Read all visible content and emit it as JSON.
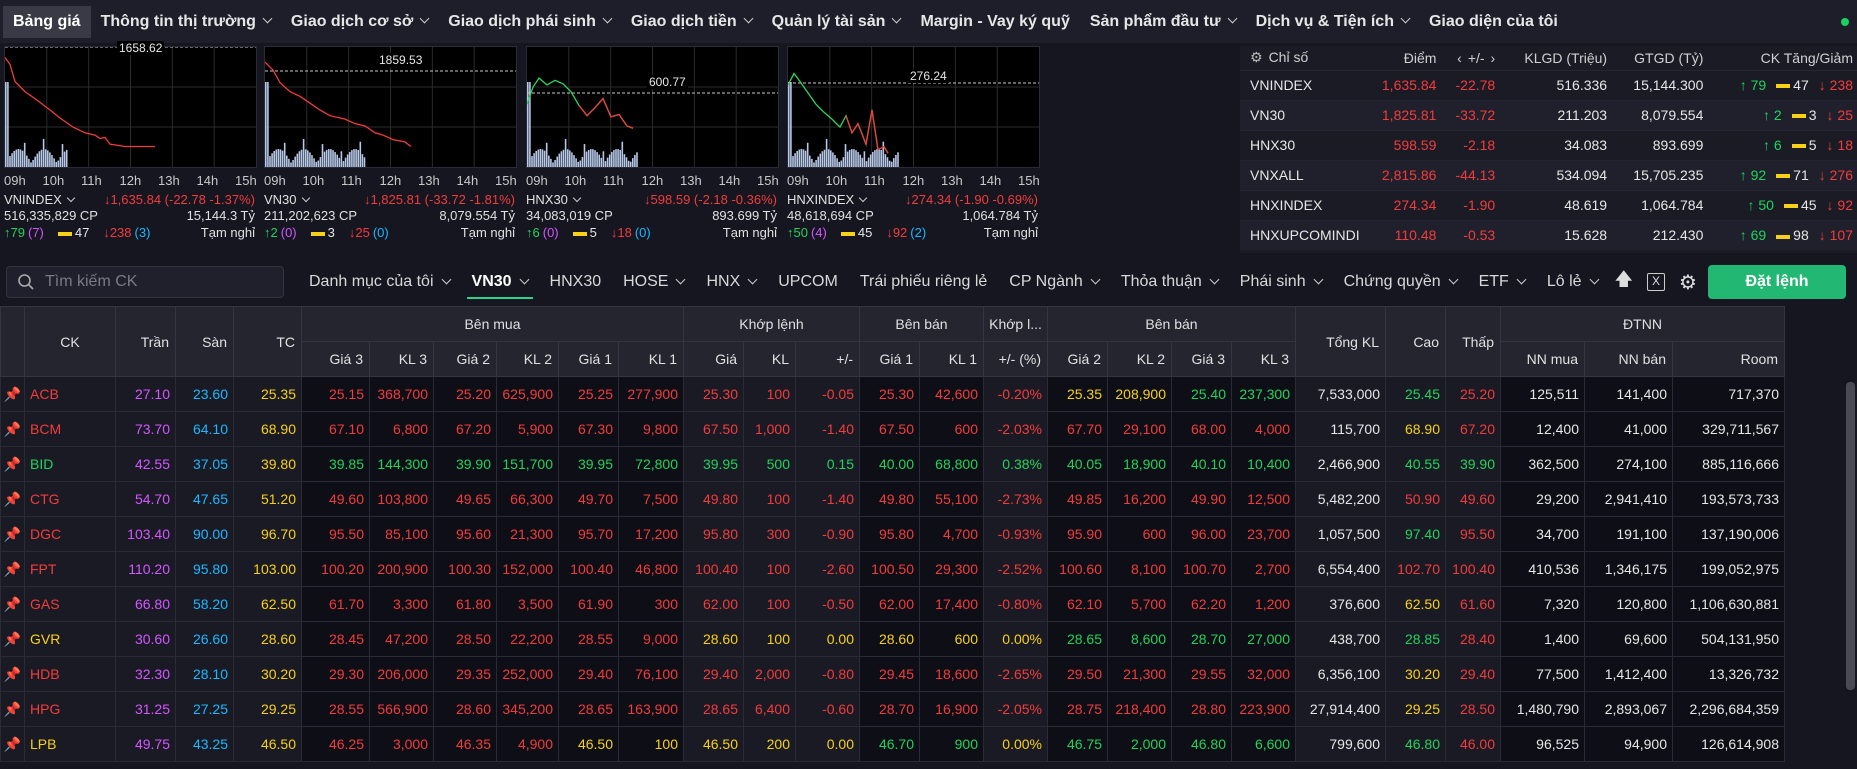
{
  "nav": {
    "items": [
      {
        "label": "Bảng giá",
        "active": true,
        "dropdown": false
      },
      {
        "label": "Thông tin thị trường",
        "dropdown": true
      },
      {
        "label": "Giao dịch cơ sở",
        "dropdown": true
      },
      {
        "label": "Giao dịch phái sinh",
        "dropdown": true
      },
      {
        "label": "Giao dịch tiền",
        "dropdown": true
      },
      {
        "label": "Quản lý tài sản",
        "dropdown": true
      },
      {
        "label": "Margin - Vay ký quỹ",
        "dropdown": false
      },
      {
        "label": "Sản phẩm đầu tư",
        "dropdown": true
      },
      {
        "label": "Dịch vụ & Tiện ích",
        "dropdown": true
      },
      {
        "label": "Giao diện của tôi",
        "dropdown": false
      }
    ]
  },
  "minicharts": {
    "times": [
      "09h",
      "10h",
      "11h",
      "12h",
      "13h",
      "14h",
      "15h"
    ],
    "items": [
      {
        "name": "VNINDEX",
        "ref_label": "1658.62",
        "change": "↓1,635.84 (-22.78 -1.37%)",
        "volume": "516,335,829 CP",
        "value": "15,144.3 Tỷ",
        "up": "↑79",
        "ceil": "(7)",
        "flat": "47",
        "down": "↓238",
        "floor": "(3)",
        "status": "Tạm nghỉ",
        "price_series": [
          [
            0,
            0.96
          ],
          [
            5,
            0.9
          ],
          [
            10,
            0.75
          ],
          [
            20,
            0.66
          ],
          [
            30,
            0.6
          ],
          [
            45,
            0.5
          ],
          [
            55,
            0.43
          ],
          [
            68,
            0.35
          ],
          [
            80,
            0.3
          ],
          [
            90,
            0.28
          ],
          [
            95,
            0.25
          ],
          [
            100,
            0.26
          ],
          [
            105,
            0.2
          ],
          [
            120,
            0.18
          ],
          [
            150,
            0.18
          ]
        ]
      },
      {
        "name": "VN30",
        "ref_label": "1859.53",
        "change": "↓1,825.81 (-33.72 -1.81%)",
        "volume": "211,202,623 CP",
        "value": "8,079.554 Tỷ",
        "up": "↑2",
        "ceil": "(0)",
        "flat": "3",
        "down": "↓25",
        "floor": "(0)",
        "status": "Tạm nghỉ",
        "price_series": [
          [
            0,
            0.92
          ],
          [
            8,
            0.85
          ],
          [
            15,
            0.74
          ],
          [
            25,
            0.66
          ],
          [
            35,
            0.62
          ],
          [
            45,
            0.56
          ],
          [
            55,
            0.5
          ],
          [
            65,
            0.45
          ],
          [
            80,
            0.42
          ],
          [
            90,
            0.38
          ],
          [
            100,
            0.36
          ],
          [
            110,
            0.3
          ],
          [
            118,
            0.28
          ],
          [
            128,
            0.24
          ],
          [
            140,
            0.22
          ],
          [
            146,
            0.18
          ]
        ]
      },
      {
        "name": "HNX30",
        "ref_label": "600.77",
        "change": "↓598.59 (-2.18 -0.36%)",
        "volume": "34,083,019 CP",
        "value": "893.699 Tỷ",
        "up": "↑6",
        "ceil": "(0)",
        "flat": "5",
        "down": "↓18",
        "floor": "(0)",
        "status": "Tạm nghỉ",
        "price_series": [
          [
            0,
            0.55
          ],
          [
            6,
            0.7
          ],
          [
            12,
            0.78
          ],
          [
            20,
            0.72
          ],
          [
            28,
            0.76
          ],
          [
            36,
            0.73
          ],
          [
            44,
            0.66
          ],
          [
            52,
            0.54
          ],
          [
            60,
            0.45
          ],
          [
            68,
            0.52
          ],
          [
            76,
            0.6
          ],
          [
            84,
            0.44
          ],
          [
            92,
            0.46
          ],
          [
            100,
            0.36
          ],
          [
            106,
            0.34
          ]
        ]
      },
      {
        "name": "HNXINDEX",
        "ref_label": "276.24",
        "change": "↓274.34 (-1.90 -0.69%)",
        "volume": "48,618,694 CP",
        "value": "1,064.784 Tỷ",
        "up": "↑50",
        "ceil": "(4)",
        "flat": "45",
        "down": "↓92",
        "floor": "(2)",
        "status": "Tạm nghỉ",
        "price_series": [
          [
            0,
            0.72
          ],
          [
            6,
            0.82
          ],
          [
            12,
            0.75
          ],
          [
            20,
            0.65
          ],
          [
            28,
            0.55
          ],
          [
            36,
            0.48
          ],
          [
            44,
            0.42
          ],
          [
            52,
            0.35
          ],
          [
            58,
            0.45
          ],
          [
            64,
            0.3
          ],
          [
            70,
            0.38
          ],
          [
            78,
            0.2
          ],
          [
            84,
            0.5
          ],
          [
            90,
            0.15
          ],
          [
            96,
            0.18
          ],
          [
            100,
            0.12
          ]
        ]
      }
    ]
  },
  "indices": {
    "headers": [
      "Chỉ số",
      "Điểm",
      "+/-",
      "KLGD (Triệu)",
      "GTGD (Tỷ)",
      "CK Tăng/Giảm"
    ],
    "rows": [
      {
        "name": "VNINDEX",
        "point": "1,635.84",
        "change": "-22.78",
        "vol": "516.336",
        "val": "15,144.300",
        "up": "↑ 79",
        "flat": "47",
        "down": "↓ 238"
      },
      {
        "name": "VN30",
        "point": "1,825.81",
        "change": "-33.72",
        "vol": "211.203",
        "val": "8,079.554",
        "up": "↑ 2",
        "flat": "3",
        "down": "↓ 25"
      },
      {
        "name": "HNX30",
        "point": "598.59",
        "change": "-2.18",
        "vol": "34.083",
        "val": "893.699",
        "up": "↑ 6",
        "flat": "5",
        "down": "↓ 18"
      },
      {
        "name": "VNXALL",
        "point": "2,815.86",
        "change": "-44.13",
        "vol": "534.094",
        "val": "15,705.235",
        "up": "↑ 92",
        "flat": "71",
        "down": "↓ 276"
      },
      {
        "name": "HNXINDEX",
        "point": "274.34",
        "change": "-1.90",
        "vol": "48.619",
        "val": "1,064.784",
        "up": "↑ 50",
        "flat": "45",
        "down": "↓ 92"
      },
      {
        "name": "HNXUPCOMINDI",
        "point": "110.48",
        "change": "-0.53",
        "vol": "15.628",
        "val": "212.430",
        "up": "↑ 69",
        "flat": "98",
        "down": "↓ 107"
      }
    ]
  },
  "toolbar": {
    "search_placeholder": "Tìm kiếm CK",
    "tabs": [
      {
        "label": "Danh mục của tôi",
        "dropdown": true
      },
      {
        "label": "VN30",
        "dropdown": true,
        "active": true
      },
      {
        "label": "HNX30",
        "dropdown": false
      },
      {
        "label": "HOSE",
        "dropdown": true
      },
      {
        "label": "HNX",
        "dropdown": true
      },
      {
        "label": "UPCOM",
        "dropdown": false
      },
      {
        "label": "Trái phiếu riêng lẻ",
        "dropdown": false
      },
      {
        "label": "CP Ngành",
        "dropdown": true
      },
      {
        "label": "Thỏa thuận",
        "dropdown": true
      },
      {
        "label": "Phái sinh",
        "dropdown": true
      },
      {
        "label": "Chứng quyền",
        "dropdown": true
      },
      {
        "label": "ETF",
        "dropdown": true
      },
      {
        "label": "Lô lẻ",
        "dropdown": true
      }
    ],
    "order_button": "Đặt lệnh"
  },
  "board": {
    "group_headers": {
      "ck": "CK",
      "ceil": "Trần",
      "floor": "Sàn",
      "ref": "TC",
      "buy": "Bên mua",
      "match": "Khớp lệnh",
      "sell1": "Bên bán",
      "match2": "Khớp l...",
      "sell2": "Bên bán",
      "total": "Tổng KL",
      "high": "Cao",
      "low": "Thấp",
      "foreign": "ĐTNN"
    },
    "sub_headers": [
      "Giá 3",
      "KL 3",
      "Giá 2",
      "KL 2",
      "Giá 1",
      "KL 1",
      "Giá",
      "KL",
      "+/-",
      "Giá 1",
      "KL 1",
      "+/- (%)",
      "Giá 2",
      "KL 2",
      "Giá 3",
      "KL 3",
      "NN mua",
      "NN bán",
      "Room"
    ],
    "rows": [
      {
        "sym": "ACB",
        "c": "red",
        "ceil": "27.10",
        "floor": "23.60",
        "ref": "25.35",
        "b3": "25.15",
        "bv3": "368,700",
        "b3c": "red",
        "b2": "25.20",
        "bv2": "625,900",
        "b2c": "red",
        "b1": "25.25",
        "bv1": "277,900",
        "b1c": "red",
        "mp": "25.30",
        "mv": "100",
        "mch": "-0.05",
        "mc": "red",
        "s1": "25.30",
        "sv1": "42,600",
        "s1c": "red",
        "pct": "-0.20%",
        "pc": "red",
        "s2": "25.35",
        "sv2": "208,900",
        "s2c": "yel",
        "s3": "25.40",
        "sv3": "237,300",
        "s3c": "grn",
        "tot": "7,533,000",
        "hi": "25.45",
        "hic": "grn",
        "lo": "25.20",
        "loc": "red",
        "nb": "125,511",
        "ns": "141,400",
        "room": "717,370"
      },
      {
        "sym": "BCM",
        "c": "red",
        "ceil": "73.70",
        "floor": "64.10",
        "ref": "68.90",
        "b3": "67.10",
        "bv3": "6,800",
        "b3c": "red",
        "b2": "67.20",
        "bv2": "5,900",
        "b2c": "red",
        "b1": "67.30",
        "bv1": "9,800",
        "b1c": "red",
        "mp": "67.50",
        "mv": "1,000",
        "mch": "-1.40",
        "mc": "red",
        "s1": "67.50",
        "sv1": "600",
        "s1c": "red",
        "pct": "-2.03%",
        "pc": "red",
        "s2": "67.70",
        "sv2": "29,100",
        "s2c": "red",
        "s3": "68.00",
        "sv3": "4,000",
        "s3c": "red",
        "tot": "115,700",
        "hi": "68.90",
        "hic": "yel",
        "lo": "67.20",
        "loc": "red",
        "nb": "12,400",
        "ns": "41,000",
        "room": "329,711,567"
      },
      {
        "sym": "BID",
        "c": "grn",
        "ceil": "42.55",
        "floor": "37.05",
        "ref": "39.80",
        "b3": "39.85",
        "bv3": "144,300",
        "b3c": "grn",
        "b2": "39.90",
        "bv2": "151,700",
        "b2c": "grn",
        "b1": "39.95",
        "bv1": "72,800",
        "b1c": "grn",
        "mp": "39.95",
        "mv": "500",
        "mch": "0.15",
        "mc": "grn",
        "s1": "40.00",
        "sv1": "68,800",
        "s1c": "grn",
        "pct": "0.38%",
        "pc": "grn",
        "s2": "40.05",
        "sv2": "18,900",
        "s2c": "grn",
        "s3": "40.10",
        "sv3": "10,400",
        "s3c": "grn",
        "tot": "2,466,900",
        "hi": "40.55",
        "hic": "grn",
        "lo": "39.90",
        "loc": "grn",
        "nb": "362,500",
        "ns": "274,100",
        "room": "885,116,666"
      },
      {
        "sym": "CTG",
        "c": "red",
        "ceil": "54.70",
        "floor": "47.65",
        "ref": "51.20",
        "b3": "49.60",
        "bv3": "103,800",
        "b3c": "red",
        "b2": "49.65",
        "bv2": "66,300",
        "b2c": "red",
        "b1": "49.70",
        "bv1": "7,500",
        "b1c": "red",
        "mp": "49.80",
        "mv": "100",
        "mch": "-1.40",
        "mc": "red",
        "s1": "49.80",
        "sv1": "55,100",
        "s1c": "red",
        "pct": "-2.73%",
        "pc": "red",
        "s2": "49.85",
        "sv2": "16,200",
        "s2c": "red",
        "s3": "49.90",
        "sv3": "12,500",
        "s3c": "red",
        "tot": "5,482,200",
        "hi": "50.90",
        "hic": "red",
        "lo": "49.60",
        "loc": "red",
        "nb": "29,200",
        "ns": "2,941,410",
        "room": "193,573,733"
      },
      {
        "sym": "DGC",
        "c": "red",
        "ceil": "103.40",
        "floor": "90.00",
        "ref": "96.70",
        "b3": "95.50",
        "bv3": "85,100",
        "b3c": "red",
        "b2": "95.60",
        "bv2": "21,300",
        "b2c": "red",
        "b1": "95.70",
        "bv1": "17,200",
        "b1c": "red",
        "mp": "95.80",
        "mv": "300",
        "mch": "-0.90",
        "mc": "red",
        "s1": "95.80",
        "sv1": "4,700",
        "s1c": "red",
        "pct": "-0.93%",
        "pc": "red",
        "s2": "95.90",
        "sv2": "600",
        "s2c": "red",
        "s3": "96.00",
        "sv3": "23,700",
        "s3c": "red",
        "tot": "1,057,500",
        "hi": "97.40",
        "hic": "grn",
        "lo": "95.50",
        "loc": "red",
        "nb": "34,700",
        "ns": "191,100",
        "room": "137,190,006"
      },
      {
        "sym": "FPT",
        "c": "red",
        "ceil": "110.20",
        "floor": "95.80",
        "ref": "103.00",
        "b3": "100.20",
        "bv3": "200,900",
        "b3c": "red",
        "b2": "100.30",
        "bv2": "152,000",
        "b2c": "red",
        "b1": "100.40",
        "bv1": "46,800",
        "b1c": "red",
        "mp": "100.40",
        "mv": "100",
        "mch": "-2.60",
        "mc": "red",
        "s1": "100.50",
        "sv1": "29,300",
        "s1c": "red",
        "pct": "-2.52%",
        "pc": "red",
        "s2": "100.60",
        "sv2": "8,100",
        "s2c": "red",
        "s3": "100.70",
        "sv3": "2,700",
        "s3c": "red",
        "tot": "6,554,400",
        "hi": "102.70",
        "hic": "red",
        "lo": "100.40",
        "loc": "red",
        "nb": "410,536",
        "ns": "1,346,175",
        "room": "199,052,975"
      },
      {
        "sym": "GAS",
        "c": "red",
        "ceil": "66.80",
        "floor": "58.20",
        "ref": "62.50",
        "b3": "61.70",
        "bv3": "3,300",
        "b3c": "red",
        "b2": "61.80",
        "bv2": "3,500",
        "b2c": "red",
        "b1": "61.90",
        "bv1": "300",
        "b1c": "red",
        "mp": "62.00",
        "mv": "100",
        "mch": "-0.50",
        "mc": "red",
        "s1": "62.00",
        "sv1": "17,400",
        "s1c": "red",
        "pct": "-0.80%",
        "pc": "red",
        "s2": "62.10",
        "sv2": "5,700",
        "s2c": "red",
        "s3": "62.20",
        "sv3": "1,200",
        "s3c": "red",
        "tot": "376,600",
        "hi": "62.50",
        "hic": "yel",
        "lo": "61.60",
        "loc": "red",
        "nb": "7,320",
        "ns": "120,800",
        "room": "1,106,630,881"
      },
      {
        "sym": "GVR",
        "c": "yel",
        "ceil": "30.60",
        "floor": "26.60",
        "ref": "28.60",
        "b3": "28.45",
        "bv3": "47,200",
        "b3c": "red",
        "b2": "28.50",
        "bv2": "22,200",
        "b2c": "red",
        "b1": "28.55",
        "bv1": "9,000",
        "b1c": "red",
        "mp": "28.60",
        "mv": "100",
        "mch": "0.00",
        "mc": "yel",
        "s1": "28.60",
        "sv1": "600",
        "s1c": "yel",
        "pct": "0.00%",
        "pc": "yel",
        "s2": "28.65",
        "sv2": "8,600",
        "s2c": "grn",
        "s3": "28.70",
        "sv3": "27,000",
        "s3c": "grn",
        "tot": "438,700",
        "hi": "28.85",
        "hic": "grn",
        "lo": "28.40",
        "loc": "red",
        "nb": "1,400",
        "ns": "69,600",
        "room": "504,131,950"
      },
      {
        "sym": "HDB",
        "c": "red",
        "ceil": "32.30",
        "floor": "28.10",
        "ref": "30.20",
        "b3": "29.30",
        "bv3": "206,000",
        "b3c": "red",
        "b2": "29.35",
        "bv2": "252,000",
        "b2c": "red",
        "b1": "29.40",
        "bv1": "76,100",
        "b1c": "red",
        "mp": "29.40",
        "mv": "2,000",
        "mch": "-0.80",
        "mc": "red",
        "s1": "29.45",
        "sv1": "18,600",
        "s1c": "red",
        "pct": "-2.65%",
        "pc": "red",
        "s2": "29.50",
        "sv2": "21,300",
        "s2c": "red",
        "s3": "29.55",
        "sv3": "32,000",
        "s3c": "red",
        "tot": "6,356,100",
        "hi": "30.20",
        "hic": "yel",
        "lo": "29.40",
        "loc": "red",
        "nb": "77,500",
        "ns": "1,412,400",
        "room": "13,326,732"
      },
      {
        "sym": "HPG",
        "c": "red",
        "ceil": "31.25",
        "floor": "27.25",
        "ref": "29.25",
        "b3": "28.55",
        "bv3": "566,900",
        "b3c": "red",
        "b2": "28.60",
        "bv2": "345,200",
        "b2c": "red",
        "b1": "28.65",
        "bv1": "163,900",
        "b1c": "red",
        "mp": "28.65",
        "mv": "6,400",
        "mch": "-0.60",
        "mc": "red",
        "s1": "28.70",
        "sv1": "16,900",
        "s1c": "red",
        "pct": "-2.05%",
        "pc": "red",
        "s2": "28.75",
        "sv2": "218,400",
        "s2c": "red",
        "s3": "28.80",
        "sv3": "223,900",
        "s3c": "red",
        "tot": "27,914,400",
        "hi": "29.25",
        "hic": "yel",
        "lo": "28.50",
        "loc": "red",
        "nb": "1,480,790",
        "ns": "2,893,067",
        "room": "2,296,684,359"
      },
      {
        "sym": "LPB",
        "c": "yel",
        "ceil": "49.75",
        "floor": "43.25",
        "ref": "46.50",
        "b3": "46.25",
        "bv3": "3,000",
        "b3c": "red",
        "b2": "46.35",
        "bv2": "4,900",
        "b2c": "red",
        "b1": "46.50",
        "bv1": "100",
        "b1c": "yel",
        "mp": "46.50",
        "mv": "200",
        "mch": "0.00",
        "mc": "yel",
        "s1": "46.70",
        "sv1": "900",
        "s1c": "grn",
        "pct": "0.00%",
        "pc": "yel",
        "s2": "46.75",
        "sv2": "2,000",
        "s2c": "grn",
        "s3": "46.80",
        "sv3": "6,600",
        "s3c": "grn",
        "tot": "799,600",
        "hi": "46.80",
        "hic": "grn",
        "lo": "46.00",
        "loc": "red",
        "nb": "96,525",
        "ns": "94,900",
        "room": "126,614,908"
      }
    ]
  },
  "colors": {
    "up": "#1fd35b",
    "down": "#f23c3c",
    "ref": "#f7d117",
    "ceil": "#d257ff",
    "floor": "#1ab8ff",
    "accent": "#22b873"
  }
}
